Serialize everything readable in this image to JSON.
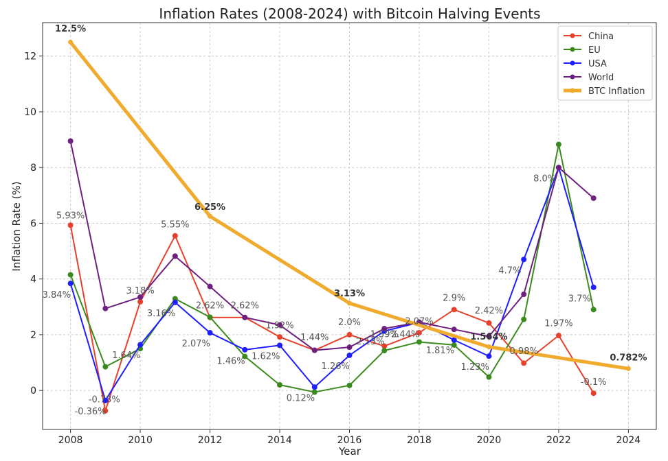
{
  "chart_data": {
    "type": "line",
    "title": "Inflation Rates (2008-2024) with Bitcoin Halving Events",
    "xlabel": "Year",
    "ylabel": "Inflation Rate (%)",
    "xlim": [
      2007.2,
      2024.8
    ],
    "ylim": [
      -1.4,
      13.2
    ],
    "xticks": [
      2008,
      2010,
      2012,
      2014,
      2016,
      2018,
      2020,
      2022,
      2024
    ],
    "yticks": [
      0,
      2,
      4,
      6,
      8,
      10,
      12
    ],
    "grid": true,
    "legend_position": "top-right",
    "series": [
      {
        "name": "China",
        "color": "#e8412b",
        "width": 2,
        "x": [
          2008,
          2009,
          2010,
          2011,
          2012,
          2013,
          2014,
          2015,
          2016,
          2017,
          2018,
          2019,
          2020,
          2021,
          2022,
          2023
        ],
        "values": [
          5.93,
          -0.73,
          3.18,
          5.55,
          2.62,
          2.62,
          1.92,
          1.44,
          2.0,
          1.59,
          2.07,
          2.9,
          2.42,
          0.98,
          1.97,
          -0.1
        ]
      },
      {
        "name": "EU",
        "color": "#3a8a1e",
        "width": 2,
        "x": [
          2008,
          2009,
          2010,
          2011,
          2012,
          2013,
          2014,
          2015,
          2016,
          2017,
          2018,
          2019,
          2020,
          2021,
          2022,
          2023
        ],
        "values": [
          4.15,
          0.85,
          1.5,
          3.29,
          2.63,
          1.22,
          0.2,
          -0.06,
          0.18,
          1.43,
          1.74,
          1.63,
          0.48,
          2.55,
          8.83,
          2.9
        ]
      },
      {
        "name": "USA",
        "color": "#1e1eff",
        "width": 2,
        "x": [
          2008,
          2009,
          2010,
          2011,
          2012,
          2013,
          2014,
          2015,
          2016,
          2017,
          2018,
          2019,
          2020,
          2021,
          2022,
          2023
        ],
        "values": [
          3.84,
          -0.36,
          1.64,
          3.16,
          2.07,
          1.46,
          1.62,
          0.12,
          1.26,
          2.13,
          2.44,
          1.81,
          1.23,
          4.7,
          8.0,
          3.7
        ]
      },
      {
        "name": "World",
        "color": "#6e1f80",
        "width": 2,
        "x": [
          2008,
          2009,
          2010,
          2011,
          2012,
          2013,
          2014,
          2015,
          2016,
          2017,
          2018,
          2019,
          2020,
          2021,
          2022,
          2023
        ],
        "values": [
          8.95,
          2.94,
          3.35,
          4.82,
          3.73,
          2.62,
          2.35,
          1.44,
          1.55,
          2.22,
          2.45,
          2.19,
          1.94,
          3.45,
          8.0,
          6.9
        ]
      },
      {
        "name": "BTC Inflation",
        "color": "#f0aa2e",
        "width": 5,
        "x": [
          2008,
          2012,
          2016,
          2020,
          2024
        ],
        "values": [
          12.5,
          6.25,
          3.13,
          1.564,
          0.782
        ]
      }
    ],
    "annotations": [
      {
        "text": "12.5%",
        "x": 2008,
        "y": 13.0,
        "bold": true
      },
      {
        "text": "6.25%",
        "x": 2012,
        "y": 6.6,
        "bold": true
      },
      {
        "text": "3.13%",
        "x": 2016,
        "y": 3.5,
        "bold": true
      },
      {
        "text": "1.564%",
        "x": 2020,
        "y": 1.95,
        "bold": true
      },
      {
        "text": "0.782%",
        "x": 2024,
        "y": 1.2,
        "bold": true
      },
      {
        "text": "5.93%",
        "x": 2008,
        "y": 6.3
      },
      {
        "text": "3.84%",
        "x": 2007.6,
        "y": 3.45
      },
      {
        "text": "-0.73%",
        "x": 2008.97,
        "y": -0.3
      },
      {
        "text": "-0.36%",
        "x": 2008.57,
        "y": -0.74
      },
      {
        "text": "3.18%",
        "x": 2010,
        "y": 3.6
      },
      {
        "text": "1.64%",
        "x": 2009.6,
        "y": 1.28
      },
      {
        "text": "5.55%",
        "x": 2011,
        "y": 5.97
      },
      {
        "text": "3.16%",
        "x": 2010.6,
        "y": 2.78
      },
      {
        "text": "2.62%",
        "x": 2012,
        "y": 3.07
      },
      {
        "text": "2.07%",
        "x": 2011.6,
        "y": 1.7
      },
      {
        "text": "2.62%",
        "x": 2013,
        "y": 3.07
      },
      {
        "text": "1.46%",
        "x": 2012.6,
        "y": 1.08
      },
      {
        "text": "1.92%",
        "x": 2014,
        "y": 2.36
      },
      {
        "text": "1.62%",
        "x": 2013.6,
        "y": 1.25
      },
      {
        "text": "1.44%",
        "x": 2015,
        "y": 1.92
      },
      {
        "text": "0.12%",
        "x": 2014.6,
        "y": -0.25
      },
      {
        "text": "2.0%",
        "x": 2016,
        "y": 2.46
      },
      {
        "text": "1.26%",
        "x": 2015.6,
        "y": 0.89
      },
      {
        "text": "2.13%",
        "x": 2016.6,
        "y": 1.77
      },
      {
        "text": "1.59%",
        "x": 2017,
        "y": 2.04
      },
      {
        "text": "2.44%",
        "x": 2017.6,
        "y": 2.04
      },
      {
        "text": "2.07%",
        "x": 2018,
        "y": 2.5
      },
      {
        "text": "2.9%",
        "x": 2019,
        "y": 3.34
      },
      {
        "text": "1.81%",
        "x": 2018.6,
        "y": 1.45
      },
      {
        "text": "2.42%",
        "x": 2020,
        "y": 2.88
      },
      {
        "text": "1.23%",
        "x": 2019.6,
        "y": 0.86
      },
      {
        "text": "4.7%",
        "x": 2020.6,
        "y": 4.33
      },
      {
        "text": "0.98%",
        "x": 2021,
        "y": 1.43
      },
      {
        "text": "8.0%",
        "x": 2021.6,
        "y": 7.62
      },
      {
        "text": "1.97%",
        "x": 2022,
        "y": 2.43
      },
      {
        "text": "3.7%",
        "x": 2022.6,
        "y": 3.32
      },
      {
        "text": "-0.1%",
        "x": 2023,
        "y": 0.32
      }
    ]
  }
}
